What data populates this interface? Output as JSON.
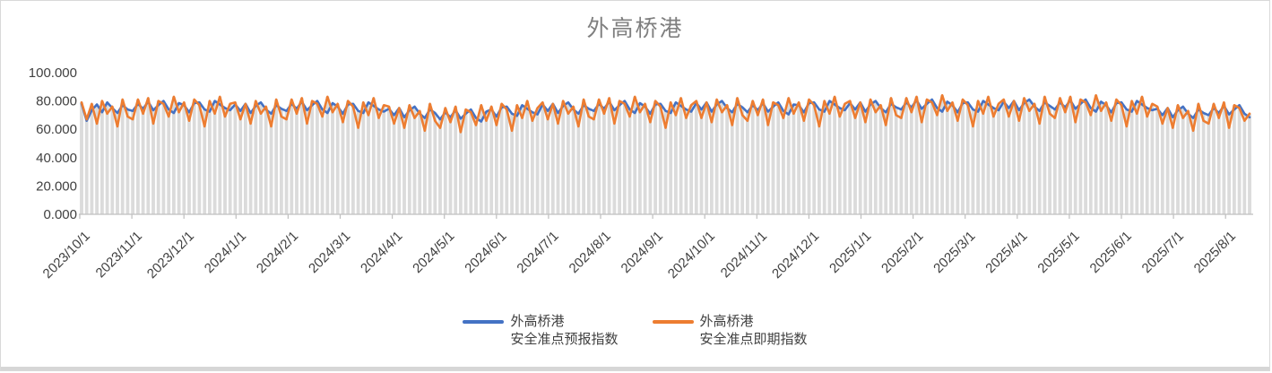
{
  "title": "外高桥港",
  "chart_data": {
    "type": "line",
    "title": "外高桥港",
    "xlabel": "",
    "ylabel": "",
    "ylim": [
      0,
      100
    ],
    "grid": false,
    "drop_lines": true,
    "legend_position": "bottom",
    "y_tick_values": [
      0,
      20,
      40,
      60,
      80,
      100
    ],
    "y_tick_labels": [
      "0.000",
      "20.000",
      "40.000",
      "60.000",
      "80.000",
      "100.000"
    ],
    "x_tick_labels": [
      "2023/10/1",
      "2023/11/1",
      "2023/12/1",
      "2024/1/1",
      "2024/2/1",
      "2024/3/1",
      "2024/4/1",
      "2024/5/1",
      "2024/6/1",
      "2024/7/1",
      "2024/8/1",
      "2024/9/1",
      "2024/10/1",
      "2024/11/1",
      "2024/12/1",
      "2025/1/1",
      "2025/2/1",
      "2025/3/1",
      "2025/4/1",
      "2025/5/1",
      "2025/6/1",
      "2025/7/1",
      "2025/8/1"
    ],
    "colors": {
      "series_forecast": "#4472C4",
      "series_spot": "#ED7D31",
      "drop_line": "#dbdbdb",
      "axis_line": "#bfbfbf",
      "axis_text": "#404040",
      "title_text": "#7f7f7f",
      "border": "#d9d9d9"
    },
    "series": [
      {
        "name_line1": "外高桥港",
        "name_line2": "安全准点预报指数",
        "color": "#4472C4",
        "values": [
          78,
          66,
          73.5,
          77.5,
          72,
          79,
          75,
          71.5,
          77,
          74,
          73,
          78,
          74.5,
          79.5,
          73.5,
          77,
          80,
          74,
          71.5,
          78.5,
          77,
          72,
          78.5,
          79,
          74,
          72.5,
          80,
          77.5,
          75,
          73.5,
          77.5,
          73,
          78,
          71.5,
          76.5,
          79,
          74,
          71,
          77,
          74.5,
          73,
          78,
          74.5,
          79.5,
          73.5,
          77,
          80,
          74,
          71.5,
          78.5,
          76,
          71,
          77.5,
          78,
          73,
          71.5,
          79,
          76.5,
          74,
          72.5,
          74.5,
          70,
          75,
          68.5,
          73.5,
          76,
          71,
          68,
          74,
          71.5,
          67,
          72,
          68.5,
          73.5,
          67.5,
          71,
          74,
          68,
          65.5,
          72.5,
          74,
          69,
          75.5,
          76,
          71,
          69.5,
          77,
          74.5,
          72,
          70.5,
          77.5,
          73,
          78,
          71.5,
          76.5,
          79,
          74,
          71,
          77,
          74.5,
          73,
          78,
          74.5,
          79.5,
          73.5,
          77,
          80,
          74,
          71.5,
          78.5,
          76,
          71,
          77.5,
          78,
          73,
          71.5,
          79,
          76.5,
          74,
          72.5,
          78.5,
          74,
          79,
          72.5,
          77.5,
          80,
          75,
          72,
          78,
          75.5,
          72,
          77,
          73.5,
          78.5,
          72.5,
          76,
          79,
          73,
          70.5,
          77.5,
          77,
          72,
          78.5,
          79,
          74,
          72.5,
          80,
          77.5,
          75,
          73.5,
          78.5,
          74,
          79,
          72.5,
          77.5,
          80,
          75,
          72,
          78,
          75.5,
          74,
          79,
          75.5,
          80.5,
          74.5,
          78,
          81,
          75,
          72.5,
          79.5,
          77,
          72,
          78.5,
          79,
          74,
          72.5,
          80,
          77.5,
          75,
          73.5,
          79.5,
          75,
          80,
          73.5,
          78.5,
          81,
          76,
          73,
          79,
          76.5,
          74,
          79,
          75.5,
          80.5,
          74.5,
          78,
          81,
          75,
          72.5,
          79.5,
          77,
          72,
          78.5,
          79,
          74,
          72.5,
          80,
          77.5,
          75,
          73.5,
          74.5,
          70,
          75,
          68.5,
          73.5,
          76,
          71,
          68,
          74,
          71.5,
          70,
          75,
          71.5,
          76.5,
          70.5,
          74,
          77,
          71,
          68.5
        ]
      },
      {
        "name_line1": "外高桥港",
        "name_line2": "安全准点即期指数",
        "color": "#ED7D31",
        "values": [
          79,
          67,
          78,
          64,
          80,
          71,
          76,
          62,
          81,
          69,
          67,
          81,
          71,
          82,
          64,
          80,
          78,
          69,
          83,
          72,
          79,
          66,
          81,
          77,
          62,
          80,
          71,
          83,
          69,
          78,
          79,
          67,
          78,
          64,
          80,
          71,
          76,
          62,
          81,
          69,
          67,
          81,
          71,
          82,
          64,
          80,
          78,
          69,
          83,
          72,
          78,
          65,
          80,
          76,
          61,
          79,
          70,
          82,
          68,
          77,
          76,
          64,
          75,
          61,
          77,
          68,
          73,
          59,
          78,
          66,
          61,
          75,
          65,
          76,
          58,
          74,
          72,
          63,
          77,
          66,
          76,
          63,
          78,
          74,
          59,
          77,
          68,
          80,
          66,
          75,
          79,
          67,
          78,
          64,
          80,
          71,
          76,
          62,
          81,
          69,
          67,
          81,
          71,
          82,
          64,
          80,
          78,
          69,
          83,
          72,
          78,
          65,
          80,
          76,
          61,
          79,
          70,
          82,
          68,
          77,
          80,
          68,
          79,
          65,
          81,
          72,
          77,
          63,
          82,
          70,
          66,
          80,
          70,
          81,
          63,
          79,
          77,
          68,
          82,
          71,
          79,
          66,
          81,
          77,
          62,
          80,
          71,
          83,
          69,
          78,
          80,
          68,
          79,
          65,
          81,
          72,
          77,
          63,
          82,
          70,
          68,
          82,
          72,
          83,
          65,
          81,
          79,
          70,
          84,
          73,
          79,
          66,
          81,
          77,
          62,
          80,
          71,
          83,
          69,
          78,
          81,
          69,
          80,
          66,
          82,
          73,
          78,
          64,
          83,
          71,
          68,
          82,
          72,
          83,
          65,
          81,
          79,
          70,
          84,
          73,
          79,
          66,
          81,
          77,
          62,
          80,
          71,
          83,
          69,
          78,
          76,
          64,
          75,
          61,
          77,
          68,
          73,
          59,
          78,
          66,
          64,
          78,
          68,
          79,
          61,
          77,
          75,
          66,
          71
        ]
      }
    ]
  }
}
